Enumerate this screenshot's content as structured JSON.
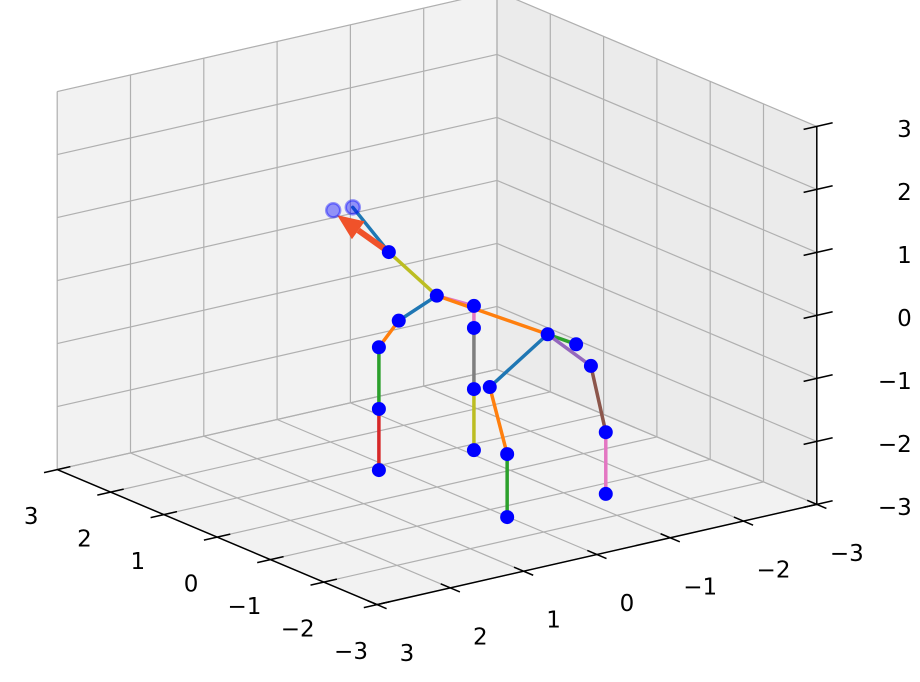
{
  "chart_data": {
    "type": "skeleton3d",
    "xlim": [
      -3,
      3
    ],
    "ylim": [
      -3,
      3
    ],
    "zlim": [
      -3,
      3
    ],
    "xticks": [
      {
        "value": -3,
        "label": "−3"
      },
      {
        "value": -2,
        "label": "−2"
      },
      {
        "value": -1,
        "label": "−1"
      },
      0,
      1,
      2,
      3
    ],
    "yticks": [
      {
        "value": -3,
        "label": "−3"
      },
      {
        "value": -2,
        "label": "−2"
      },
      {
        "value": -1,
        "label": "−1"
      },
      0,
      1,
      2,
      3
    ],
    "zticks": [
      {
        "value": -3,
        "label": "−3"
      },
      {
        "value": -2,
        "label": "−2"
      },
      {
        "value": -1,
        "label": "−1"
      },
      0,
      1,
      2,
      3
    ],
    "grid": true,
    "points": {
      "color": "#0000ff",
      "x": [
        2.36,
        2.68,
        1.66,
        0.76,
        0.82,
        0.82,
        0.82,
        0.82,
        0.58,
        0.87,
        0.87,
        0.87,
        -1.32,
        -0.96,
        -1.1,
        -1.31,
        -1.31,
        -0.99,
        -1.33,
        -1.33
      ],
      "y": [
        -0.3,
        -0.8,
        -0.55,
        -0.55,
        -1.1,
        -1.1,
        -1.1,
        -1.1,
        0.1,
        0.16,
        0.16,
        0.16,
        -0.55,
        -1.2,
        -1.3,
        -1.35,
        -1.35,
        0,
        0.01,
        0.01
      ],
      "z": [
        0.47,
        0.27,
        -0.01,
        -0.38,
        -0.71,
        -1.06,
        -2.03,
        -3,
        -0.54,
        -1.05,
        -2.03,
        -3,
        -0.25,
        -0.71,
        -1.03,
        -2.02,
        -3,
        -1.06,
        -2.0,
        -3
      ],
      "alpha": [
        0.4,
        0.4,
        1,
        1,
        1,
        1,
        1,
        1,
        1,
        1,
        1,
        1,
        1,
        1,
        1,
        1,
        1,
        1,
        1,
        1
      ]
    },
    "bones": [
      {
        "from": 2,
        "to": 1,
        "color": "#1f77b4"
      },
      {
        "from": 2,
        "to": 3,
        "color": "#bcbd22"
      },
      {
        "from": 3,
        "to": 8,
        "color": "#1f77b4"
      },
      {
        "from": 8,
        "to": 9,
        "color": "#ff7f0e"
      },
      {
        "from": 9,
        "to": 10,
        "color": "#2ca02c"
      },
      {
        "from": 10,
        "to": 11,
        "color": "#d62728"
      },
      {
        "from": 3,
        "to": 4,
        "color": "#e377c2"
      },
      {
        "from": 4,
        "to": 5,
        "color": "#e377c2"
      },
      {
        "from": 5,
        "to": 6,
        "color": "#7f7f7f"
      },
      {
        "from": 6,
        "to": 7,
        "color": "#bcbd22"
      },
      {
        "from": 3,
        "to": 12,
        "color": "#ff7f0e"
      },
      {
        "from": 12,
        "to": 13,
        "color": "#2ca02c"
      },
      {
        "from": 12,
        "to": 14,
        "color": "#9467bd"
      },
      {
        "from": 14,
        "to": 15,
        "color": "#8c564b"
      },
      {
        "from": 15,
        "to": 16,
        "color": "#e377c2"
      },
      {
        "from": 12,
        "to": 17,
        "color": "#1f77b4"
      },
      {
        "from": 17,
        "to": 18,
        "color": "#ff7f0e"
      },
      {
        "from": 18,
        "to": 19,
        "color": "#2ca02c"
      }
    ],
    "arrow": {
      "color": "#f0522a",
      "from": [
        1.66,
        -0.55,
        -0.01
      ],
      "to": [
        2.63,
        -0.55,
        0.23
      ]
    }
  }
}
